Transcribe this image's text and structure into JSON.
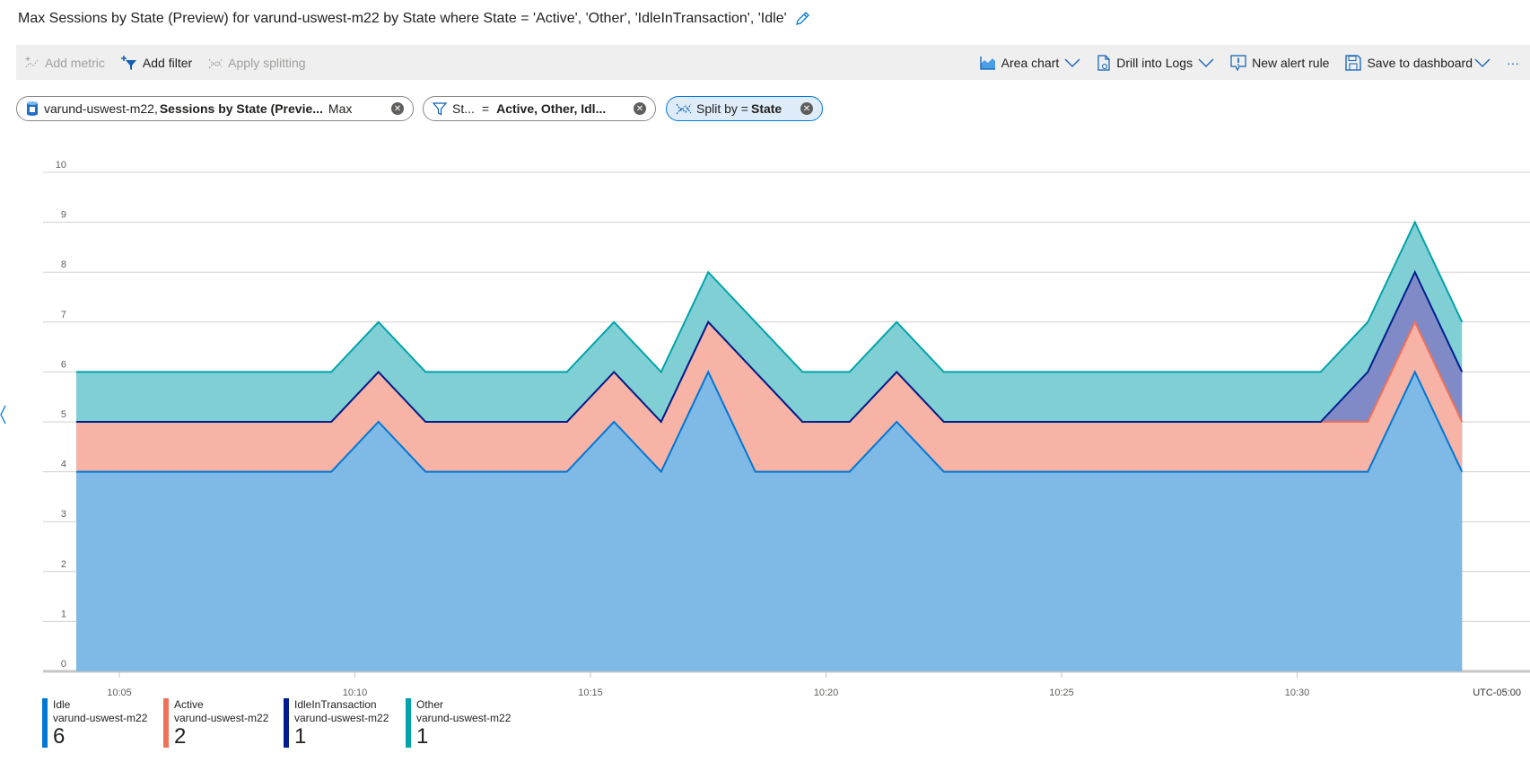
{
  "title": "Max Sessions by State (Preview) for varund-uswest-m22 by State where State = 'Active', 'Other', 'IdleInTransaction', 'Idle'",
  "toolbar": {
    "add_metric": "Add metric",
    "add_filter": "Add filter",
    "apply_splitting": "Apply splitting",
    "area_chart": "Area chart",
    "drill_logs": "Drill into Logs",
    "new_alert": "New alert rule",
    "save_dashboard": "Save to dashboard",
    "more": "···"
  },
  "pills": {
    "metric": {
      "resource": "varund-uswest-m22,",
      "metric": "Sessions by State (Previe...",
      "agg": "Max"
    },
    "filter": {
      "prop": "St...",
      "op": "=",
      "values": "Active, Other, Idl..."
    },
    "split": {
      "label": "Split by =",
      "value": "State"
    }
  },
  "chart_data": {
    "type": "area",
    "stacked": true,
    "x": [
      "10:04:30",
      "10:05:30",
      "10:06:30",
      "10:07:30",
      "10:08:30",
      "10:09:30",
      "10:10:30",
      "10:11:30",
      "10:12:30",
      "10:13:30",
      "10:14:30",
      "10:15:30",
      "10:16:30",
      "10:17:30",
      "10:18:30",
      "10:19:30",
      "10:20:30",
      "10:21:30",
      "10:22:30",
      "10:23:30",
      "10:24:30",
      "10:25:30",
      "10:26:30",
      "10:27:30",
      "10:28:30",
      "10:29:30",
      "10:30:30",
      "10:31:30",
      "10:32:30",
      "10:33:30"
    ],
    "series": [
      {
        "name": "Idle",
        "resource": "varund-uswest-m22",
        "summary": "6",
        "color": "#0078d4",
        "fill": "#7fb9e6",
        "values": [
          4,
          4,
          4,
          4,
          4,
          4,
          5,
          4,
          4,
          4,
          4,
          5,
          4,
          6,
          4,
          4,
          4,
          5,
          4,
          4,
          4,
          4,
          4,
          4,
          4,
          4,
          4,
          4,
          6,
          4
        ]
      },
      {
        "name": "Active",
        "resource": "varund-uswest-m22",
        "summary": "2",
        "color": "#f0705a",
        "fill": "#f6b3a6",
        "values": [
          1,
          1,
          1,
          1,
          1,
          1,
          1,
          1,
          1,
          1,
          1,
          1,
          1,
          1,
          2,
          1,
          1,
          1,
          1,
          1,
          1,
          1,
          1,
          1,
          1,
          1,
          1,
          1,
          1,
          1
        ]
      },
      {
        "name": "IdleInTransaction",
        "resource": "varund-uswest-m22",
        "summary": "1",
        "color": "#001d8e",
        "fill": "#7f8ac6",
        "values": [
          0,
          0,
          0,
          0,
          0,
          0,
          0,
          0,
          0,
          0,
          0,
          0,
          0,
          0,
          0,
          0,
          0,
          0,
          0,
          0,
          0,
          0,
          0,
          0,
          0,
          0,
          0,
          1,
          1,
          1
        ]
      },
      {
        "name": "Other",
        "resource": "varund-uswest-m22",
        "summary": "1",
        "color": "#00a3aa",
        "fill": "#80cfd4",
        "values": [
          1,
          1,
          1,
          1,
          1,
          1,
          1,
          1,
          1,
          1,
          1,
          1,
          1,
          1,
          1,
          1,
          1,
          1,
          1,
          1,
          1,
          1,
          1,
          1,
          1,
          1,
          1,
          1,
          1,
          1
        ]
      }
    ],
    "yticks": [
      "0",
      "1",
      "2",
      "3",
      "4",
      "5",
      "6",
      "7",
      "8",
      "9",
      "10"
    ],
    "ylim": [
      0,
      10
    ],
    "xticks": [
      "10:05",
      "10:10",
      "10:15",
      "10:20",
      "10:25",
      "10:30"
    ],
    "timezone": "UTC-05:00",
    "grid": true,
    "legend": "bottom-left"
  }
}
